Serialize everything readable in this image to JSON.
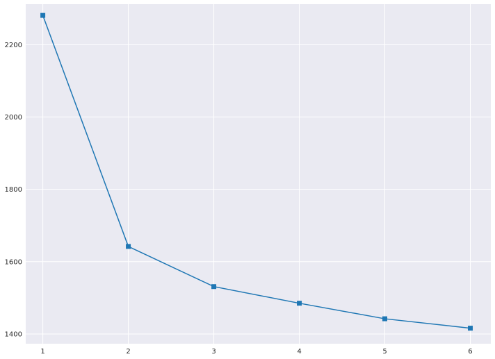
{
  "chart_data": {
    "type": "line",
    "title": "",
    "xlabel": "",
    "ylabel": "",
    "x": [
      1,
      2,
      3,
      4,
      5,
      6
    ],
    "series": [
      {
        "values": [
          2281,
          1642,
          1531,
          1485,
          1442,
          1416
        ]
      }
    ],
    "xticks": [
      "1",
      "2",
      "3",
      "4",
      "5",
      "6"
    ],
    "yticks": [
      "1400",
      "1600",
      "1800",
      "2000",
      "2200"
    ],
    "xlim": [
      0.8,
      6.24
    ],
    "ylim": [
      1373,
      2312
    ],
    "grid": true,
    "marker": "square",
    "colors": {
      "background": "#eaeaf2",
      "grid": "#ffffff",
      "line": "#1f77b4"
    }
  }
}
